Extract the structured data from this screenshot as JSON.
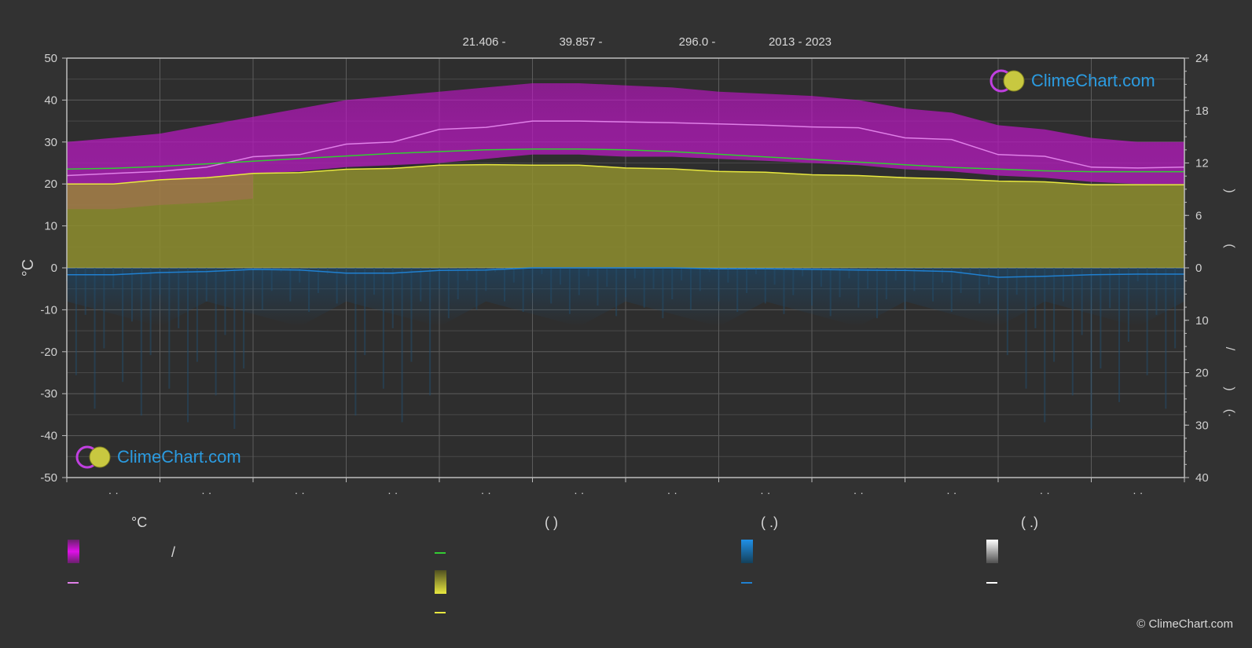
{
  "header": {
    "lat": "21.406 -",
    "lon": "39.857 -",
    "elev": "296.0 -",
    "years": "2013 - 2023"
  },
  "logo": {
    "text": "ClimeChart.com"
  },
  "copyright": "© ClimeChart.com",
  "legend": {
    "col1_head": "°C",
    "col1_slash": "/",
    "col2_head": "(          )",
    "col3_head": "(   .)",
    "col4_head": "(   .)"
  },
  "colors": {
    "background": "#323232",
    "grid": "#5a5a5a",
    "max_temp": "#e080e8",
    "max_band": "#d010d8",
    "daylight": "#33cc33",
    "sunshine": "#e8e840",
    "sunshine_fill": "#a0a030",
    "precip": "#2080d0",
    "snow": "#ffffff"
  },
  "chart_data": {
    "type": "line",
    "y_left": {
      "label": "°C",
      "range": [
        -50,
        50
      ],
      "ticks": [
        50,
        40,
        30,
        20,
        10,
        0,
        -10,
        -20,
        -30,
        -40,
        -50
      ]
    },
    "y_right_top": {
      "range": [
        0,
        24
      ],
      "ticks": [
        24,
        18,
        12,
        6,
        0
      ]
    },
    "y_right_bottom": {
      "range": [
        0,
        40
      ],
      "ticks": [
        10,
        20,
        30,
        40
      ]
    },
    "right_axis_label_glyphs": [
      ")",
      "(",
      "/",
      ")",
      "(·"
    ],
    "months": 12,
    "month_labels": [
      "· ·",
      "· ·",
      "· ·",
      "· ·",
      "· ·",
      "· ·",
      "· ·",
      "· ·",
      "· ·",
      "· ·",
      "· ·",
      "· ·"
    ],
    "x": [
      0,
      0.5,
      1,
      1.5,
      2,
      2.5,
      3,
      3.5,
      4,
      4.5,
      5,
      5.5,
      6,
      6.5,
      7,
      7.5,
      8,
      8.5,
      9,
      9.5,
      10,
      10.5,
      11,
      11.5,
      12
    ],
    "series": [
      {
        "values": [
          22,
          22.5,
          23,
          24,
          26.5,
          27,
          29.5,
          30,
          33,
          33.5,
          35,
          35,
          34.8,
          34.6,
          34.3,
          34,
          33.6,
          33.4,
          31,
          30.6,
          27,
          26.6,
          24,
          23.8,
          24
        ]
      },
      {
        "values": [
          11.3,
          11.4,
          11.6,
          11.9,
          12.2,
          12.5,
          12.8,
          13.1,
          13.3,
          13.5,
          13.6,
          13.6,
          13.5,
          13.3,
          13.0,
          12.7,
          12.4,
          12.1,
          11.8,
          11.5,
          11.3,
          11.1,
          11.0,
          11.0,
          11.0
        ]
      },
      {
        "values": [
          20,
          20,
          21,
          21.5,
          22.5,
          22.7,
          23.5,
          23.7,
          24.5,
          24.6,
          24.5,
          24.5,
          23.8,
          23.6,
          23,
          22.8,
          22.2,
          22,
          21.5,
          21.2,
          20.7,
          20.5,
          19.8,
          19.8,
          19.8
        ]
      },
      {
        "values": [
          1.3,
          1.3,
          0.9,
          0.7,
          0.3,
          0.4,
          1.0,
          1.0,
          0.5,
          0.4,
          0,
          0,
          0,
          0,
          0.2,
          0.2,
          0.3,
          0.4,
          0.5,
          0.7,
          1.8,
          1.6,
          1.3,
          1.2,
          1.2
        ]
      }
    ],
    "max_band_top": [
      30,
      31,
      32,
      34,
      36,
      38,
      40,
      41,
      42,
      43,
      44,
      44,
      43.5,
      43,
      42,
      41.5,
      41,
      40,
      38,
      37,
      34,
      33,
      31,
      30,
      30
    ],
    "min_band_bottom": [
      20,
      20,
      21,
      21.5,
      22.5,
      23,
      24,
      24.5,
      25,
      26,
      27,
      27,
      26.5,
      26.5,
      26,
      25.5,
      25,
      24.5,
      23.5,
      23,
      22,
      21.5,
      20.5,
      20,
      20
    ]
  }
}
